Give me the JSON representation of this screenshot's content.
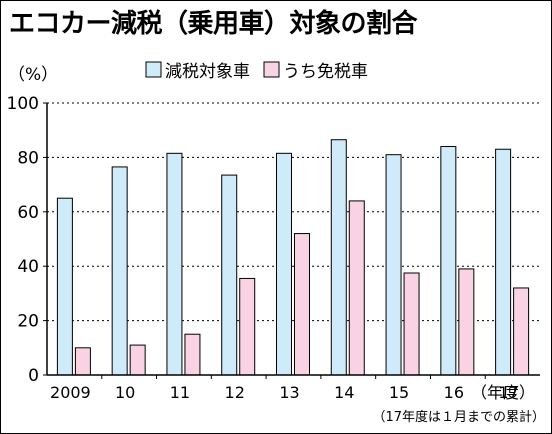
{
  "title": "エコカー減税（乗用車）対象の割合",
  "chart_data": {
    "type": "bar",
    "y_unit_label": "（%）",
    "x_unit_label": "（年度）",
    "note": "（17年度は１月までの累計）",
    "categories": [
      "2009",
      "10",
      "11",
      "12",
      "13",
      "14",
      "15",
      "16",
      "17"
    ],
    "series": [
      {
        "name": "減税対象車",
        "color": "#cfeaf8",
        "values": [
          65,
          76.5,
          81.5,
          73.5,
          81.5,
          86.5,
          81,
          84,
          83
        ]
      },
      {
        "name": "うち免税車",
        "color": "#f9d3e3",
        "values": [
          10,
          11,
          15,
          35.5,
          52,
          64,
          37.5,
          39,
          32
        ]
      }
    ],
    "ylim": [
      0,
      100
    ],
    "y_ticks": [
      0,
      20,
      40,
      60,
      80,
      100
    ],
    "grid": true,
    "legend_position": "top"
  }
}
